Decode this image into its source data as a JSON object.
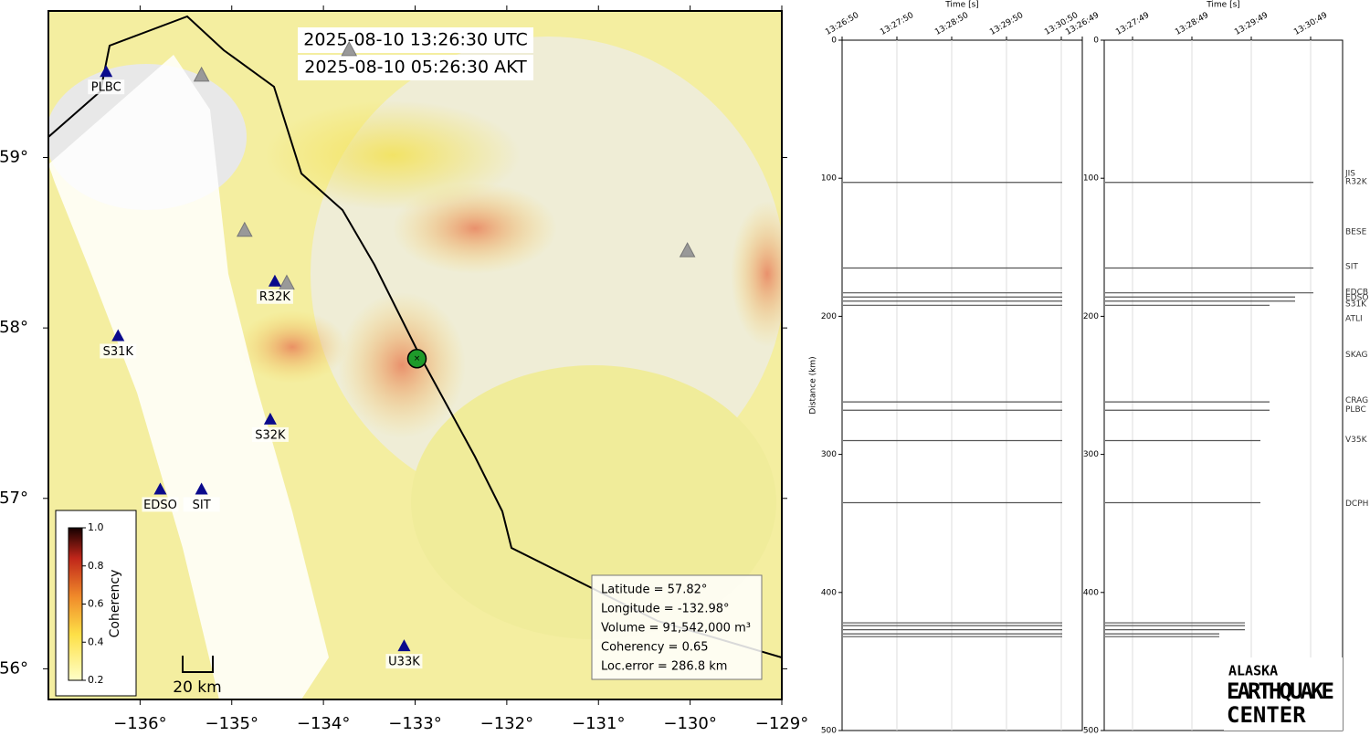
{
  "map": {
    "timestamps": [
      "2025-08-10 13:26:30 UTC",
      "2025-08-10 05:26:30 AKT"
    ],
    "xlim": [
      -137.0,
      -129.0
    ],
    "ylim": [
      55.82,
      59.86
    ],
    "xticks": [
      {
        "value": -136,
        "label": "−136°"
      },
      {
        "value": -135,
        "label": "−135°"
      },
      {
        "value": -134,
        "label": "−134°"
      },
      {
        "value": -133,
        "label": "−133°"
      },
      {
        "value": -132,
        "label": "−132°"
      },
      {
        "value": -131,
        "label": "−131°"
      },
      {
        "value": -130,
        "label": "−130°"
      },
      {
        "value": -129,
        "label": "−129°"
      }
    ],
    "yticks": [
      {
        "value": 56,
        "label": "56°"
      },
      {
        "value": 57,
        "label": "57°"
      },
      {
        "value": 58,
        "label": "58°"
      },
      {
        "value": 59,
        "label": "59°"
      }
    ],
    "stations": [
      {
        "name": "PLBC",
        "lon": -136.37,
        "lat": 59.5
      },
      {
        "name": "R32K",
        "lon": -134.53,
        "lat": 58.27
      },
      {
        "name": "S31K",
        "lon": -136.24,
        "lat": 57.95
      },
      {
        "name": "S32K",
        "lon": -134.58,
        "lat": 57.46
      },
      {
        "name": "EDSO",
        "lon": -135.78,
        "lat": 57.05
      },
      {
        "name": "SIT",
        "lon": -135.33,
        "lat": 57.05
      },
      {
        "name": "U33K",
        "lon": -133.12,
        "lat": 56.13
      }
    ],
    "inactive_stations": [
      {
        "lon": -135.33,
        "lat": 59.48
      },
      {
        "lon": -134.86,
        "lat": 58.57
      },
      {
        "lon": -134.4,
        "lat": 58.26
      },
      {
        "lon": -130.03,
        "lat": 58.45
      },
      {
        "lon": -133.72,
        "lat": 59.63
      }
    ],
    "event": {
      "lon": -132.98,
      "lat": 57.82
    },
    "info": [
      "Latitude = 57.82°",
      "Longitude = -132.98°",
      "Volume = 91,542,000 m³",
      "Coherency = 0.65",
      "Loc.error = 286.8 km"
    ],
    "colorbar": {
      "label": "Coherency",
      "clim": [
        0.2,
        1.0
      ],
      "ticks": [
        {
          "value": 0.2,
          "label": "0.2"
        },
        {
          "value": 0.4,
          "label": "0.4"
        },
        {
          "value": 0.6,
          "label": "0.6"
        },
        {
          "value": 0.8,
          "label": "0.8"
        },
        {
          "value": 1.0,
          "label": "1.0"
        }
      ]
    },
    "scalebar": "20 km"
  },
  "chart_data": [
    {
      "type": "record",
      "xlabel": "Time [s]",
      "ylabel": "Distance (km)",
      "xticks": [
        "13:26:50",
        "13:27:50",
        "13:28:50",
        "13:29:50",
        "13:30:50",
        "13:26:49"
      ],
      "ylim": [
        0,
        500
      ],
      "yticks": [
        0,
        100,
        200,
        300,
        400,
        500
      ],
      "traces": [
        103,
        165,
        183,
        186,
        189,
        192,
        262,
        268,
        290,
        335,
        422,
        424,
        427,
        430,
        432
      ]
    },
    {
      "type": "record",
      "xlabel": "Time [s]",
      "xticks": [
        "13:27:49",
        "13:28:49",
        "13:29:49",
        "13:30:49"
      ],
      "ylim": [
        0,
        500
      ],
      "yticks": [
        0,
        100,
        200,
        300,
        400,
        500
      ],
      "traces": [
        103,
        165,
        183,
        186,
        189,
        192,
        262,
        268,
        290,
        335,
        422,
        424,
        427,
        430,
        432
      ],
      "station_labels": [
        {
          "name": "JIS",
          "distance": 96.7
        },
        {
          "name": "R32K",
          "distance": 102.6
        },
        {
          "name": "BESE",
          "distance": 138.9
        },
        {
          "name": "SIT",
          "distance": 164
        },
        {
          "name": "EDCB",
          "distance": 182.5
        },
        {
          "name": "EDSO",
          "distance": 186.5
        },
        {
          "name": "S31K",
          "distance": 191
        },
        {
          "name": "ATLI",
          "distance": 201.6
        },
        {
          "name": "SKAG",
          "distance": 228
        },
        {
          "name": "CRAG",
          "distance": 261
        },
        {
          "name": "PLBC",
          "distance": 267.5
        },
        {
          "name": "V35K",
          "distance": 289.4
        },
        {
          "name": "DCPH",
          "distance": 335.5
        }
      ]
    }
  ],
  "logo": [
    "ALASKA",
    "EARTHQUAKE",
    "CENTER"
  ]
}
